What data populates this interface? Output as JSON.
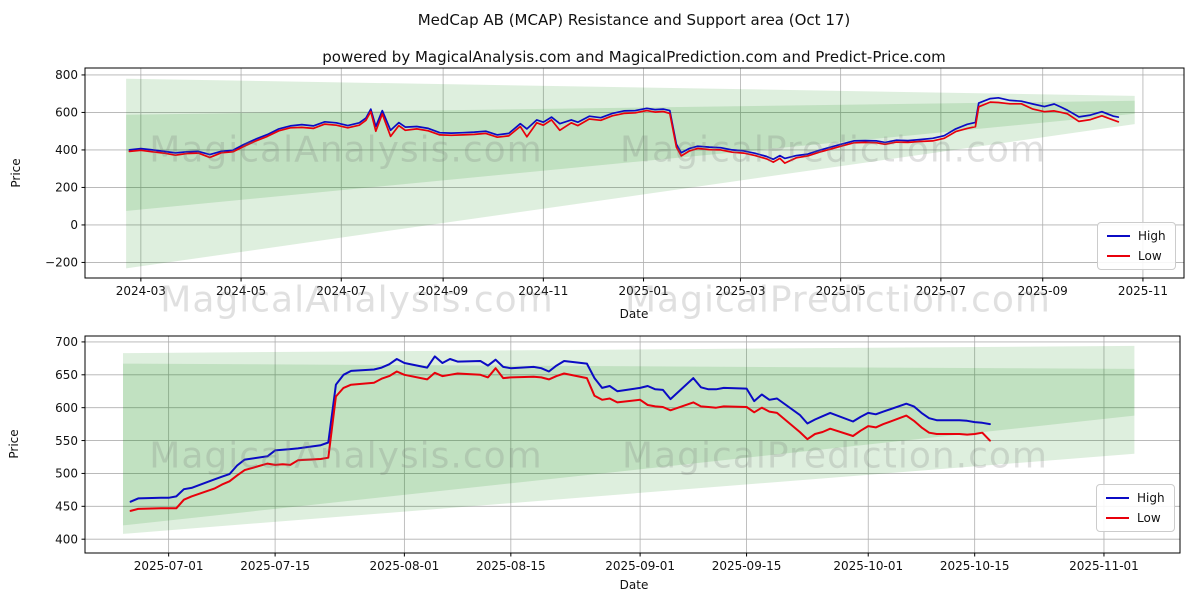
{
  "figure": {
    "title": "MedCap AB (MCAP) Resistance and Support area (Oct 17)",
    "subtitle": "powered by MagicalAnalysis.com and MagicalPrediction.com and Predict-Price.com",
    "watermarks": {
      "left": "MagicalAnalysis.com",
      "right": "MagicalPrediction.com"
    },
    "colors": {
      "high": "#0b0bc4",
      "low": "#e8000b",
      "area": "#008000",
      "grid": "#b0b0b0",
      "spine": "#000000"
    }
  },
  "chart_data": [
    {
      "name": "full-history-chart",
      "type": "line",
      "xlabel": "Date",
      "ylabel": "Price",
      "xlim": [
        "2024-01-27",
        "2025-11-26"
      ],
      "ylim": [
        -283,
        837
      ],
      "grid": true,
      "legend_position": "lower right",
      "x_ticks": [
        {
          "date": "2024-03-01",
          "label": "2024-03"
        },
        {
          "date": "2024-05-01",
          "label": "2024-05"
        },
        {
          "date": "2024-07-01",
          "label": "2024-07"
        },
        {
          "date": "2024-09-01",
          "label": "2024-09"
        },
        {
          "date": "2024-11-01",
          "label": "2024-11"
        },
        {
          "date": "2025-01-01",
          "label": "2025-01"
        },
        {
          "date": "2025-03-01",
          "label": "2025-03"
        },
        {
          "date": "2025-05-01",
          "label": "2025-05"
        },
        {
          "date": "2025-07-01",
          "label": "2025-07"
        },
        {
          "date": "2025-09-01",
          "label": "2025-09"
        },
        {
          "date": "2025-11-01",
          "label": "2025-11"
        }
      ],
      "y_ticks": [
        {
          "value": 800,
          "label": "800"
        },
        {
          "value": 600,
          "label": "600"
        },
        {
          "value": 400,
          "label": "400"
        },
        {
          "value": 200,
          "label": "200"
        },
        {
          "value": 0,
          "label": "0"
        },
        {
          "value": -200,
          "label": "−200"
        }
      ],
      "dates": [
        "2024-02-23",
        "2024-03-01",
        "2024-03-08",
        "2024-03-15",
        "2024-03-22",
        "2024-03-29",
        "2024-04-05",
        "2024-04-12",
        "2024-04-19",
        "2024-04-26",
        "2024-05-03",
        "2024-05-10",
        "2024-05-17",
        "2024-05-24",
        "2024-05-31",
        "2024-06-07",
        "2024-06-14",
        "2024-06-21",
        "2024-06-28",
        "2024-07-05",
        "2024-07-12",
        "2024-07-16",
        "2024-07-19",
        "2024-07-22",
        "2024-07-26",
        "2024-07-31",
        "2024-08-05",
        "2024-08-09",
        "2024-08-16",
        "2024-08-23",
        "2024-08-30",
        "2024-09-06",
        "2024-09-13",
        "2024-09-20",
        "2024-09-27",
        "2024-10-04",
        "2024-10-11",
        "2024-10-18",
        "2024-10-22",
        "2024-10-28",
        "2024-11-01",
        "2024-11-06",
        "2024-11-11",
        "2024-11-18",
        "2024-11-22",
        "2024-11-29",
        "2024-12-06",
        "2024-12-13",
        "2024-12-20",
        "2024-12-27",
        "2025-01-03",
        "2025-01-08",
        "2025-01-13",
        "2025-01-17",
        "2025-01-21",
        "2025-01-24",
        "2025-01-29",
        "2025-02-03",
        "2025-02-10",
        "2025-02-17",
        "2025-02-24",
        "2025-03-03",
        "2025-03-10",
        "2025-03-17",
        "2025-03-21",
        "2025-03-25",
        "2025-03-28",
        "2025-04-04",
        "2025-04-11",
        "2025-04-18",
        "2025-04-25",
        "2025-05-02",
        "2025-05-09",
        "2025-05-16",
        "2025-05-23",
        "2025-05-28",
        "2025-06-04",
        "2025-06-11",
        "2025-06-18",
        "2025-06-26",
        "2025-07-03",
        "2025-07-10",
        "2025-07-17",
        "2025-07-22",
        "2025-07-24",
        "2025-07-31",
        "2025-08-05",
        "2025-08-12",
        "2025-08-19",
        "2025-08-26",
        "2025-09-02",
        "2025-09-08",
        "2025-09-12",
        "2025-09-16",
        "2025-09-23",
        "2025-09-30",
        "2025-10-07",
        "2025-10-14",
        "2025-10-17"
      ],
      "series": [
        {
          "name": "High",
          "values": [
            400,
            407,
            400,
            392,
            384,
            390,
            392,
            375,
            393,
            398,
            430,
            458,
            482,
            512,
            528,
            535,
            528,
            550,
            545,
            530,
            545,
            570,
            618,
            525,
            610,
            505,
            546,
            522,
            525,
            515,
            492,
            490,
            492,
            495,
            500,
            480,
            488,
            540,
            512,
            560,
            548,
            575,
            540,
            560,
            548,
            580,
            572,
            595,
            608,
            610,
            622,
            615,
            618,
            610,
            430,
            385,
            408,
            420,
            415,
            412,
            400,
            395,
            382,
            365,
            350,
            370,
            355,
            370,
            378,
            398,
            415,
            432,
            448,
            450,
            448,
            440,
            452,
            450,
            455,
            462,
            476,
            512,
            537,
            547,
            650,
            674,
            678,
            664,
            660,
            645,
            631,
            645,
            629,
            612,
            576,
            586,
            604,
            580,
            575
          ]
        },
        {
          "name": "Low",
          "values": [
            392,
            398,
            390,
            383,
            372,
            381,
            383,
            360,
            385,
            390,
            420,
            448,
            472,
            502,
            518,
            520,
            515,
            538,
            532,
            518,
            532,
            558,
            605,
            500,
            592,
            472,
            530,
            505,
            512,
            502,
            480,
            478,
            480,
            483,
            488,
            468,
            475,
            525,
            470,
            545,
            532,
            560,
            505,
            545,
            530,
            565,
            558,
            582,
            595,
            598,
            610,
            602,
            605,
            595,
            415,
            368,
            395,
            408,
            402,
            400,
            388,
            383,
            370,
            352,
            335,
            355,
            330,
            358,
            368,
            388,
            405,
            422,
            438,
            440,
            438,
            430,
            442,
            440,
            445,
            448,
            462,
            498,
            515,
            524,
            630,
            655,
            653,
            646,
            646,
            618,
            604,
            608,
            601,
            593,
            552,
            562,
            582,
            559,
            550
          ]
        }
      ],
      "areas": [
        {
          "name": "resistance-band",
          "points": [
            [
              "2024-02-21",
              780
            ],
            [
              "2025-10-27",
              688
            ],
            [
              "2025-10-27",
              593
            ],
            [
              "2024-02-21",
              75
            ]
          ]
        },
        {
          "name": "support-band",
          "points": [
            [
              "2024-02-21",
              588
            ],
            [
              "2025-10-27",
              662
            ],
            [
              "2025-10-27",
              538
            ],
            [
              "2024-02-21",
              -232
            ]
          ]
        }
      ],
      "legend": [
        "High",
        "Low"
      ]
    },
    {
      "name": "recent-detail-chart",
      "type": "line",
      "xlabel": "Date",
      "ylabel": "Price",
      "xlim": [
        "2025-06-20",
        "2025-11-11"
      ],
      "ylim": [
        379,
        709
      ],
      "grid": true,
      "legend_position": "lower right",
      "x_ticks": [
        {
          "date": "2025-07-01",
          "label": "2025-07-01"
        },
        {
          "date": "2025-07-15",
          "label": "2025-07-15"
        },
        {
          "date": "2025-08-01",
          "label": "2025-08-01"
        },
        {
          "date": "2025-08-15",
          "label": "2025-08-15"
        },
        {
          "date": "2025-09-01",
          "label": "2025-09-01"
        },
        {
          "date": "2025-09-15",
          "label": "2025-09-15"
        },
        {
          "date": "2025-10-01",
          "label": "2025-10-01"
        },
        {
          "date": "2025-10-15",
          "label": "2025-10-15"
        },
        {
          "date": "2025-11-01",
          "label": "2025-11-01"
        }
      ],
      "y_ticks": [
        {
          "value": 700,
          "label": "700"
        },
        {
          "value": 650,
          "label": "650"
        },
        {
          "value": 600,
          "label": "600"
        },
        {
          "value": 550,
          "label": "550"
        },
        {
          "value": 500,
          "label": "500"
        },
        {
          "value": 450,
          "label": "450"
        },
        {
          "value": 400,
          "label": "400"
        }
      ],
      "dates": [
        "2025-06-26",
        "2025-06-27",
        "2025-06-30",
        "2025-07-01",
        "2025-07-02",
        "2025-07-03",
        "2025-07-04",
        "2025-07-07",
        "2025-07-08",
        "2025-07-09",
        "2025-07-10",
        "2025-07-11",
        "2025-07-14",
        "2025-07-15",
        "2025-07-16",
        "2025-07-17",
        "2025-07-18",
        "2025-07-21",
        "2025-07-22",
        "2025-07-23",
        "2025-07-24",
        "2025-07-25",
        "2025-07-28",
        "2025-07-29",
        "2025-07-30",
        "2025-07-31",
        "2025-08-01",
        "2025-08-04",
        "2025-08-05",
        "2025-08-06",
        "2025-08-07",
        "2025-08-08",
        "2025-08-11",
        "2025-08-12",
        "2025-08-13",
        "2025-08-14",
        "2025-08-15",
        "2025-08-18",
        "2025-08-19",
        "2025-08-20",
        "2025-08-21",
        "2025-08-22",
        "2025-08-25",
        "2025-08-26",
        "2025-08-27",
        "2025-08-28",
        "2025-08-29",
        "2025-09-01",
        "2025-09-02",
        "2025-09-03",
        "2025-09-04",
        "2025-09-05",
        "2025-09-08",
        "2025-09-09",
        "2025-09-10",
        "2025-09-11",
        "2025-09-12",
        "2025-09-15",
        "2025-09-16",
        "2025-09-17",
        "2025-09-18",
        "2025-09-19",
        "2025-09-22",
        "2025-09-23",
        "2025-09-24",
        "2025-09-25",
        "2025-09-26",
        "2025-09-29",
        "2025-09-30",
        "2025-10-01",
        "2025-10-02",
        "2025-10-03",
        "2025-10-06",
        "2025-10-07",
        "2025-10-08",
        "2025-10-09",
        "2025-10-10",
        "2025-10-13",
        "2025-10-14",
        "2025-10-15",
        "2025-10-16",
        "2025-10-17"
      ],
      "series": [
        {
          "name": "High",
          "values": [
            457,
            462,
            463,
            463,
            465,
            476,
            478,
            491,
            495,
            499,
            512,
            521,
            526,
            535,
            536,
            537,
            538,
            543,
            547,
            635,
            650,
            656,
            658,
            661,
            666,
            674,
            668,
            661,
            678,
            668,
            674,
            670,
            671,
            664,
            673,
            662,
            660,
            662,
            660,
            655,
            664,
            671,
            667,
            645,
            630,
            633,
            625,
            630,
            633,
            628,
            627,
            613,
            645,
            631,
            628,
            628,
            630,
            629,
            610,
            620,
            612,
            614,
            589,
            576,
            582,
            587,
            592,
            579,
            586,
            592,
            590,
            594,
            606,
            602,
            592,
            584,
            581,
            581,
            580,
            578,
            577,
            575
          ]
        },
        {
          "name": "Low",
          "values": [
            443,
            446,
            447,
            447,
            447,
            460,
            465,
            477,
            483,
            488,
            497,
            505,
            515,
            513,
            514,
            513,
            520,
            522,
            524,
            617,
            630,
            635,
            638,
            644,
            648,
            655,
            650,
            643,
            653,
            648,
            650,
            652,
            650,
            646,
            660,
            645,
            646,
            647,
            646,
            643,
            648,
            652,
            645,
            618,
            612,
            614,
            608,
            612,
            604,
            602,
            601,
            596,
            608,
            602,
            601,
            600,
            602,
            601,
            593,
            600,
            594,
            592,
            563,
            552,
            560,
            563,
            568,
            557,
            565,
            572,
            570,
            575,
            588,
            580,
            570,
            562,
            560,
            560,
            559,
            560,
            562,
            550
          ]
        }
      ],
      "areas": [
        {
          "name": "resistance-band",
          "points": [
            [
              "2025-06-25",
              683
            ],
            [
              "2025-11-05",
              694
            ],
            [
              "2025-11-05",
              588
            ],
            [
              "2025-06-25",
              421
            ]
          ]
        },
        {
          "name": "support-band",
          "points": [
            [
              "2025-06-25",
              667
            ],
            [
              "2025-11-05",
              659
            ],
            [
              "2025-11-05",
              530
            ],
            [
              "2025-06-25",
              408
            ]
          ]
        }
      ],
      "legend": [
        "High",
        "Low"
      ]
    }
  ],
  "legend": {
    "high_label": "High",
    "low_label": "Low"
  }
}
